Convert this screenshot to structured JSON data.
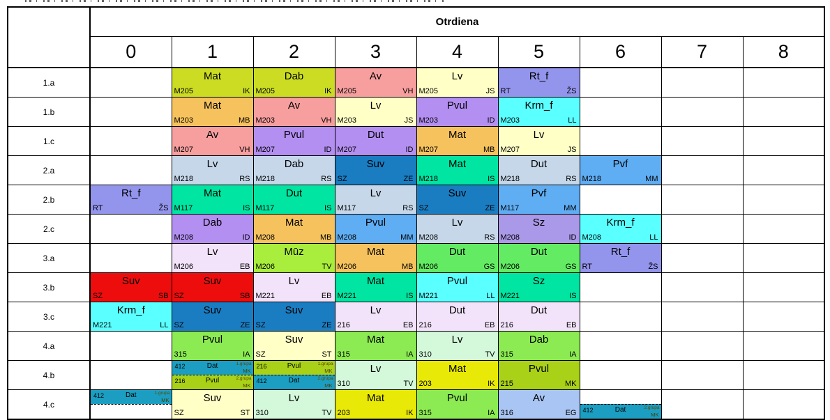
{
  "header": {
    "day": "Otrdiena",
    "periods": [
      "0",
      "1",
      "2",
      "3",
      "4",
      "5",
      "6",
      "7",
      "8"
    ]
  },
  "colors": {
    "lime": "#cbdc23",
    "salmon": "#f79e9e",
    "cream": "#ffffc6",
    "periwinkle": "#9394ec",
    "orange": "#f6c25e",
    "violet": "#b38ff1",
    "cyan": "#5affff",
    "bluegray": "#c5d7e9",
    "deepblue": "#1a7dc2",
    "springgreen": "#00e5a1",
    "skyblue": "#5fadf3",
    "mutedviolet": "#aa98e8",
    "lavender": "#f3e3fa",
    "chartreuse": "#a9ed3d",
    "red": "#ee0d0d",
    "green": "#63ec63",
    "brightgreen": "#8ceb52",
    "mint": "#d3f8da",
    "teal": "#1b9ec1",
    "olive": "#a9d118",
    "yellow": "#e9e907",
    "lightblue": "#a9c5f3"
  },
  "rows": [
    {
      "label": "1.a",
      "cells": [
        null,
        {
          "room": "M205",
          "subject": "Mat",
          "teacher": "IK",
          "color": "lime"
        },
        {
          "room": "M205",
          "subject": "Dab",
          "teacher": "IK",
          "color": "lime"
        },
        {
          "room": "M205",
          "subject": "Av",
          "teacher": "VH",
          "color": "salmon"
        },
        {
          "room": "M205",
          "subject": "Lv",
          "teacher": "JS",
          "color": "cream"
        },
        {
          "room": "RT",
          "subject": "Rt_f",
          "teacher": "ŽS",
          "color": "periwinkle"
        },
        null,
        null,
        null
      ]
    },
    {
      "label": "1.b",
      "cells": [
        null,
        {
          "room": "M203",
          "subject": "Mat",
          "teacher": "MB",
          "color": "orange"
        },
        {
          "room": "M203",
          "subject": "Av",
          "teacher": "VH",
          "color": "salmon"
        },
        {
          "room": "M203",
          "subject": "Lv",
          "teacher": "JS",
          "color": "cream"
        },
        {
          "room": "M203",
          "subject": "Pvul",
          "teacher": "ID",
          "color": "violet"
        },
        {
          "room": "M203",
          "subject": "Krm_f",
          "teacher": "LL",
          "color": "cyan"
        },
        null,
        null,
        null
      ]
    },
    {
      "label": "1.c",
      "cells": [
        null,
        {
          "room": "M207",
          "subject": "Av",
          "teacher": "VH",
          "color": "salmon"
        },
        {
          "room": "M207",
          "subject": "Pvul",
          "teacher": "ID",
          "color": "violet"
        },
        {
          "room": "M207",
          "subject": "Dut",
          "teacher": "ID",
          "color": "violet"
        },
        {
          "room": "M207",
          "subject": "Mat",
          "teacher": "MB",
          "color": "orange"
        },
        {
          "room": "M207",
          "subject": "Lv",
          "teacher": "JS",
          "color": "cream"
        },
        null,
        null,
        null
      ]
    },
    {
      "label": "2.a",
      "cells": [
        null,
        {
          "room": "M218",
          "subject": "Lv",
          "teacher": "RS",
          "color": "bluegray"
        },
        {
          "room": "M218",
          "subject": "Dab",
          "teacher": "RS",
          "color": "bluegray"
        },
        {
          "room": "SZ",
          "subject": "Suv",
          "teacher": "ZE",
          "color": "deepblue"
        },
        {
          "room": "M218",
          "subject": "Mat",
          "teacher": "IS",
          "color": "springgreen"
        },
        {
          "room": "M218",
          "subject": "Dut",
          "teacher": "RS",
          "color": "bluegray"
        },
        {
          "room": "M218",
          "subject": "Pvf",
          "teacher": "MM",
          "color": "skyblue"
        },
        null,
        null
      ]
    },
    {
      "label": "2.b",
      "cells": [
        {
          "room": "RT",
          "subject": "Rt_f",
          "teacher": "ŽS",
          "color": "periwinkle"
        },
        {
          "room": "M117",
          "subject": "Mat",
          "teacher": "IS",
          "color": "springgreen"
        },
        {
          "room": "M117",
          "subject": "Dut",
          "teacher": "IS",
          "color": "springgreen"
        },
        {
          "room": "M117",
          "subject": "Lv",
          "teacher": "RS",
          "color": "bluegray"
        },
        {
          "room": "SZ",
          "subject": "Suv",
          "teacher": "ZE",
          "color": "deepblue"
        },
        {
          "room": "M117",
          "subject": "Pvf",
          "teacher": "MM",
          "color": "skyblue"
        },
        null,
        null,
        null
      ]
    },
    {
      "label": "2.c",
      "cells": [
        null,
        {
          "room": "M208",
          "subject": "Dab",
          "teacher": "ID",
          "color": "violet"
        },
        {
          "room": "M208",
          "subject": "Mat",
          "teacher": "MB",
          "color": "orange"
        },
        {
          "room": "M208",
          "subject": "Pvul",
          "teacher": "MM",
          "color": "skyblue"
        },
        {
          "room": "M208",
          "subject": "Lv",
          "teacher": "RS",
          "color": "bluegray"
        },
        {
          "room": "M208",
          "subject": "Sz",
          "teacher": "ID",
          "color": "mutedviolet"
        },
        {
          "room": "M208",
          "subject": "Krm_f",
          "teacher": "LL",
          "color": "cyan"
        },
        null,
        null
      ]
    },
    {
      "label": "3.a",
      "cells": [
        null,
        {
          "room": "M206",
          "subject": "Lv",
          "teacher": "EB",
          "color": "lavender"
        },
        {
          "room": "M206",
          "subject": "Mūz",
          "teacher": "TV",
          "color": "chartreuse"
        },
        {
          "room": "M206",
          "subject": "Mat",
          "teacher": "MB",
          "color": "orange"
        },
        {
          "room": "M206",
          "subject": "Dut",
          "teacher": "GS",
          "color": "green"
        },
        {
          "room": "M206",
          "subject": "Dut",
          "teacher": "GS",
          "color": "green"
        },
        {
          "room": "RT",
          "subject": "Rt_f",
          "teacher": "ŽS",
          "color": "periwinkle"
        },
        null,
        null
      ]
    },
    {
      "label": "3.b",
      "cells": [
        {
          "room": "SZ",
          "subject": "Suv",
          "teacher": "SB",
          "color": "red"
        },
        {
          "room": "SZ",
          "subject": "Suv",
          "teacher": "SB",
          "color": "red"
        },
        {
          "room": "M221",
          "subject": "Lv",
          "teacher": "EB",
          "color": "lavender"
        },
        {
          "room": "M221",
          "subject": "Mat",
          "teacher": "IS",
          "color": "springgreen"
        },
        {
          "room": "M221",
          "subject": "Pvul",
          "teacher": "LL",
          "color": "cyan"
        },
        {
          "room": "M221",
          "subject": "Sz",
          "teacher": "IS",
          "color": "springgreen"
        },
        null,
        null,
        null
      ]
    },
    {
      "label": "3.c",
      "cells": [
        {
          "room": "M221",
          "subject": "Krm_f",
          "teacher": "LL",
          "color": "cyan"
        },
        {
          "room": "SZ",
          "subject": "Suv",
          "teacher": "ZE",
          "color": "deepblue"
        },
        {
          "room": "SZ",
          "subject": "Suv",
          "teacher": "ZE",
          "color": "deepblue"
        },
        {
          "room": "216",
          "subject": "Lv",
          "teacher": "EB",
          "color": "lavender"
        },
        {
          "room": "216",
          "subject": "Dut",
          "teacher": "EB",
          "color": "lavender"
        },
        {
          "room": "216",
          "subject": "Dut",
          "teacher": "EB",
          "color": "lavender"
        },
        null,
        null,
        null
      ]
    },
    {
      "label": "4.a",
      "cells": [
        null,
        {
          "room": "315",
          "subject": "Pvul",
          "teacher": "IA",
          "color": "brightgreen"
        },
        {
          "room": "SZ",
          "subject": "Suv",
          "teacher": "ST",
          "color": "cream"
        },
        {
          "room": "315",
          "subject": "Mat",
          "teacher": "IA",
          "color": "brightgreen"
        },
        {
          "room": "310",
          "subject": "Lv",
          "teacher": "TV",
          "color": "mint"
        },
        {
          "room": "315",
          "subject": "Dab",
          "teacher": "IA",
          "color": "brightgreen"
        },
        null,
        null,
        null
      ]
    },
    {
      "label": "4.b",
      "cells": [
        null,
        {
          "split": [
            {
              "room": "412",
              "subject": "Dat",
              "group": "1.grupa",
              "teacher": "MK",
              "color": "teal"
            },
            {
              "room": "216",
              "subject": "Pvul",
              "group": "2.grupa",
              "teacher": "MK",
              "color": "olive"
            }
          ]
        },
        {
          "split": [
            {
              "room": "216",
              "subject": "Pvul",
              "group": "1.grupa",
              "teacher": "MK",
              "color": "olive"
            },
            {
              "room": "412",
              "subject": "Dat",
              "group": "2.grupa",
              "teacher": "MK",
              "color": "teal"
            }
          ]
        },
        {
          "room": "310",
          "subject": "Lv",
          "teacher": "TV",
          "color": "mint"
        },
        {
          "room": "203",
          "subject": "Mat",
          "teacher": "IK",
          "color": "yellow"
        },
        {
          "room": "215",
          "subject": "Pvul",
          "teacher": "MK",
          "color": "olive"
        },
        null,
        null,
        null
      ]
    },
    {
      "label": "4.c",
      "cells": [
        {
          "split": [
            {
              "room": "412",
              "subject": "Dat",
              "group": "1.grupa",
              "teacher": "MK",
              "color": "teal"
            },
            null
          ]
        },
        {
          "room": "SZ",
          "subject": "Suv",
          "teacher": "ST",
          "color": "cream"
        },
        {
          "room": "310",
          "subject": "Lv",
          "teacher": "TV",
          "color": "mint"
        },
        {
          "room": "203",
          "subject": "Mat",
          "teacher": "IK",
          "color": "yellow"
        },
        {
          "room": "315",
          "subject": "Pvul",
          "teacher": "IA",
          "color": "brightgreen"
        },
        {
          "room": "316",
          "subject": "Av",
          "teacher": "EG",
          "color": "lightblue"
        },
        {
          "split": [
            null,
            {
              "room": "412",
              "subject": "Dat",
              "group": "2.grupa",
              "teacher": "MK",
              "color": "teal"
            }
          ]
        },
        null,
        null
      ]
    }
  ]
}
